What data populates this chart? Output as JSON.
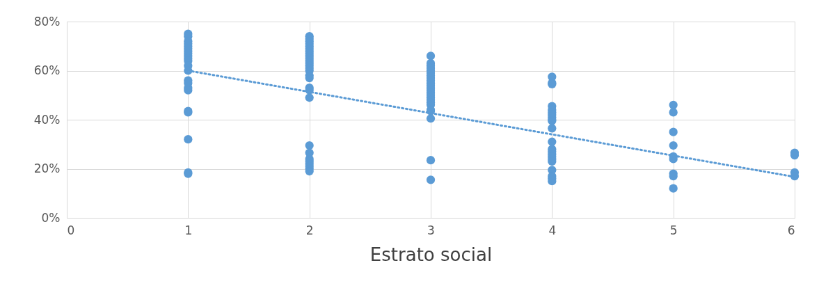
{
  "chart_data": {
    "type": "scatter",
    "xlabel": "Estrato social",
    "grid": true,
    "xlim": [
      0,
      6
    ],
    "xticks": [
      0,
      1,
      2,
      3,
      4,
      5,
      6
    ],
    "ylim": [
      0,
      80
    ],
    "yticks": [
      {
        "value": 0,
        "label": "0%"
      },
      {
        "value": 20,
        "label": "20%"
      },
      {
        "value": 40,
        "label": "40%"
      },
      {
        "value": 60,
        "label": "60%"
      },
      {
        "value": 80,
        "label": "80%"
      }
    ],
    "series": [
      {
        "marker": "circle",
        "color": "#5b9bd5",
        "x": [
          1,
          1,
          1,
          1,
          1,
          1,
          1,
          1,
          1,
          1,
          1,
          1,
          1,
          1,
          1,
          1,
          1,
          1,
          1,
          1,
          1,
          1,
          2,
          2,
          2,
          2,
          2,
          2,
          2,
          2,
          2,
          2,
          2,
          2,
          2,
          2,
          2,
          2,
          2,
          2,
          2,
          2,
          2,
          2,
          2,
          2,
          2,
          2,
          2,
          2,
          3,
          3,
          3,
          3,
          3,
          3,
          3,
          3,
          3,
          3,
          3,
          3,
          3,
          3,
          3,
          3,
          3,
          3,
          3,
          3,
          3,
          3,
          3,
          3,
          4,
          4,
          4,
          4,
          4,
          4,
          4,
          4,
          4,
          4,
          4,
          4,
          4,
          4,
          4,
          4,
          4,
          4,
          4,
          4,
          4,
          4,
          5,
          5,
          5,
          5,
          5,
          5,
          5,
          5,
          5,
          6,
          6,
          6,
          6
        ],
        "values": [
          75,
          74,
          72,
          71,
          70,
          69,
          68,
          67,
          66,
          65,
          64,
          62,
          60,
          56,
          55,
          53,
          52,
          43.5,
          43,
          32,
          18.5,
          18,
          74,
          73,
          72,
          71,
          70,
          69,
          68,
          67,
          66,
          65,
          64,
          63,
          62,
          61,
          60,
          58,
          57,
          53,
          52,
          49,
          29.5,
          26.5,
          24,
          23,
          22,
          21,
          20,
          19,
          66,
          63,
          62,
          61,
          60,
          59,
          58,
          57,
          56,
          55,
          54,
          53,
          52,
          51,
          50,
          49,
          48,
          47,
          46,
          44,
          43.5,
          40.5,
          23.5,
          15.5,
          57.5,
          55,
          54.5,
          45.5,
          44,
          43,
          42,
          41,
          40,
          39.5,
          36.5,
          31,
          28,
          27,
          26,
          25,
          24,
          23,
          19.5,
          17,
          16,
          15,
          46,
          43,
          35,
          29.5,
          25,
          24,
          18,
          17,
          12,
          26.5,
          25.5,
          18.5,
          17
        ]
      },
      {
        "type": "line",
        "color": "#5b9bd5",
        "line_style": "dotted",
        "marker": "none",
        "x": [
          1,
          6
        ],
        "values": [
          60,
          16.7
        ]
      }
    ]
  }
}
